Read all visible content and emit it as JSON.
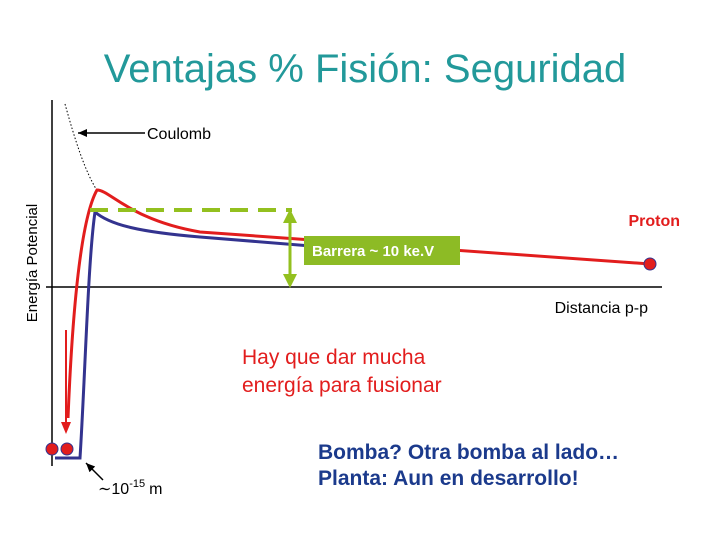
{
  "title": "Ventajas % Fisión: Seguridad",
  "axis_label": "Energía Potencial",
  "labels": {
    "coulomb": "Coulomb",
    "proton": "Proton",
    "barrier": "Barrera ~ 10 ke.V",
    "distance": "Distancia p-p",
    "range_prefix": "∼10",
    "range_exponent": "-15",
    "range_unit": "m"
  },
  "note_red": [
    "Hay que dar mucha",
    "energía para fusionar"
  ],
  "note_blue": [
    "Bomba? Otra bomba al lado…",
    "Planta: Aun en desarrollo!"
  ]
}
